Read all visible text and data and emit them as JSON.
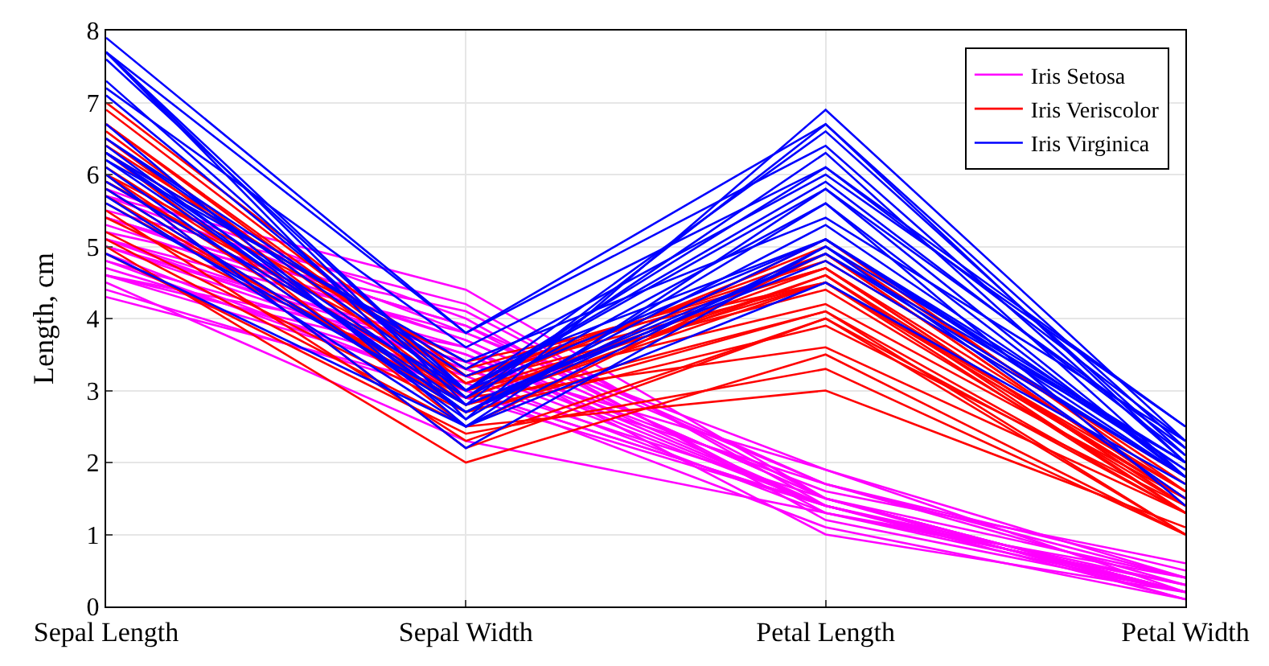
{
  "chart_data": {
    "type": "line",
    "ylabel": "Length, cm",
    "categories": [
      "Sepal Length",
      "Sepal Width",
      "Petal Length",
      "Petal Width"
    ],
    "ylim": [
      0,
      8
    ],
    "yticks": [
      0,
      1,
      2,
      3,
      4,
      5,
      6,
      7,
      8
    ],
    "grid": true,
    "legend": "top right",
    "line_style": "solid",
    "marker": "none",
    "series": [
      {
        "name": "Iris Setosa",
        "color": "#ff00ff",
        "values": [
          5.1,
          3.5,
          1.4,
          0.2
        ]
      },
      {
        "color": "#ff00ff",
        "values": [
          4.9,
          3.0,
          1.4,
          0.2
        ]
      },
      {
        "color": "#ff00ff",
        "values": [
          4.7,
          3.2,
          1.3,
          0.2
        ]
      },
      {
        "color": "#ff00ff",
        "values": [
          4.6,
          3.1,
          1.5,
          0.2
        ]
      },
      {
        "color": "#ff00ff",
        "values": [
          5.0,
          3.6,
          1.4,
          0.2
        ]
      },
      {
        "color": "#ff00ff",
        "values": [
          5.4,
          3.9,
          1.7,
          0.4
        ]
      },
      {
        "color": "#ff00ff",
        "values": [
          4.6,
          3.4,
          1.4,
          0.3
        ]
      },
      {
        "color": "#ff00ff",
        "values": [
          4.4,
          2.9,
          1.4,
          0.2
        ]
      },
      {
        "color": "#ff00ff",
        "values": [
          5.4,
          3.7,
          1.5,
          0.2
        ]
      },
      {
        "color": "#ff00ff",
        "values": [
          4.8,
          3.0,
          1.4,
          0.1
        ]
      },
      {
        "color": "#ff00ff",
        "values": [
          4.3,
          3.0,
          1.1,
          0.1
        ]
      },
      {
        "color": "#ff00ff",
        "values": [
          5.8,
          4.0,
          1.2,
          0.2
        ]
      },
      {
        "color": "#ff00ff",
        "values": [
          5.7,
          4.4,
          1.5,
          0.4
        ]
      },
      {
        "color": "#ff00ff",
        "values": [
          5.4,
          3.9,
          1.3,
          0.4
        ]
      },
      {
        "color": "#ff00ff",
        "values": [
          5.7,
          3.8,
          1.7,
          0.3
        ]
      },
      {
        "color": "#ff00ff",
        "values": [
          4.6,
          3.6,
          1.0,
          0.2
        ]
      },
      {
        "color": "#ff00ff",
        "values": [
          5.1,
          3.3,
          1.7,
          0.5
        ]
      },
      {
        "color": "#ff00ff",
        "values": [
          4.8,
          3.4,
          1.9,
          0.2
        ]
      },
      {
        "color": "#ff00ff",
        "values": [
          5.2,
          4.1,
          1.5,
          0.1
        ]
      },
      {
        "color": "#ff00ff",
        "values": [
          5.5,
          4.2,
          1.4,
          0.2
        ]
      },
      {
        "color": "#ff00ff",
        "values": [
          4.5,
          2.3,
          1.3,
          0.3
        ]
      },
      {
        "color": "#ff00ff",
        "values": [
          5.0,
          3.5,
          1.6,
          0.6
        ]
      },
      {
        "color": "#ff00ff",
        "values": [
          5.1,
          3.8,
          1.9,
          0.4
        ]
      },
      {
        "color": "#ff00ff",
        "values": [
          5.3,
          3.7,
          1.5,
          0.2
        ]
      },
      {
        "color": "#ff00ff",
        "values": [
          5.0,
          3.3,
          1.4,
          0.2
        ]
      },
      {
        "name": "Iris Veriscolor",
        "color": "#ff0000",
        "values": [
          7.0,
          3.2,
          4.7,
          1.4
        ]
      },
      {
        "color": "#ff0000",
        "values": [
          6.4,
          3.2,
          4.5,
          1.5
        ]
      },
      {
        "color": "#ff0000",
        "values": [
          6.9,
          3.1,
          4.9,
          1.5
        ]
      },
      {
        "color": "#ff0000",
        "values": [
          5.5,
          2.3,
          4.0,
          1.3
        ]
      },
      {
        "color": "#ff0000",
        "values": [
          6.5,
          2.8,
          4.6,
          1.5
        ]
      },
      {
        "color": "#ff0000",
        "values": [
          5.7,
          2.8,
          4.5,
          1.3
        ]
      },
      {
        "color": "#ff0000",
        "values": [
          6.3,
          3.3,
          4.7,
          1.6
        ]
      },
      {
        "color": "#ff0000",
        "values": [
          4.9,
          2.4,
          3.3,
          1.0
        ]
      },
      {
        "color": "#ff0000",
        "values": [
          6.6,
          2.9,
          4.6,
          1.3
        ]
      },
      {
        "color": "#ff0000",
        "values": [
          5.2,
          2.7,
          3.9,
          1.4
        ]
      },
      {
        "color": "#ff0000",
        "values": [
          5.0,
          2.0,
          3.5,
          1.0
        ]
      },
      {
        "color": "#ff0000",
        "values": [
          5.9,
          3.0,
          4.2,
          1.5
        ]
      },
      {
        "color": "#ff0000",
        "values": [
          6.0,
          2.2,
          4.0,
          1.0
        ]
      },
      {
        "color": "#ff0000",
        "values": [
          6.1,
          2.9,
          4.7,
          1.4
        ]
      },
      {
        "color": "#ff0000",
        "values": [
          5.6,
          2.9,
          3.6,
          1.3
        ]
      },
      {
        "color": "#ff0000",
        "values": [
          6.7,
          3.1,
          4.4,
          1.4
        ]
      },
      {
        "color": "#ff0000",
        "values": [
          5.9,
          3.2,
          4.8,
          1.8
        ]
      },
      {
        "color": "#ff0000",
        "values": [
          6.7,
          3.0,
          5.0,
          1.7
        ]
      },
      {
        "color": "#ff0000",
        "values": [
          6.0,
          2.7,
          5.1,
          1.6
        ]
      },
      {
        "color": "#ff0000",
        "values": [
          5.4,
          3.0,
          4.5,
          1.5
        ]
      },
      {
        "color": "#ff0000",
        "values": [
          6.0,
          3.4,
          4.5,
          1.6
        ]
      },
      {
        "color": "#ff0000",
        "values": [
          5.1,
          2.5,
          3.0,
          1.1
        ]
      },
      {
        "color": "#ff0000",
        "values": [
          5.7,
          2.8,
          4.1,
          1.3
        ]
      },
      {
        "color": "#ff0000",
        "values": [
          6.3,
          2.5,
          4.9,
          1.5
        ]
      },
      {
        "color": "#ff0000",
        "values": [
          5.8,
          2.7,
          4.1,
          1.0
        ]
      },
      {
        "name": "Iris Virginica",
        "color": "#0000ff",
        "values": [
          6.3,
          3.3,
          6.0,
          2.5
        ]
      },
      {
        "color": "#0000ff",
        "values": [
          5.8,
          2.7,
          5.1,
          1.9
        ]
      },
      {
        "color": "#0000ff",
        "values": [
          7.1,
          3.0,
          5.9,
          2.1
        ]
      },
      {
        "color": "#0000ff",
        "values": [
          6.3,
          2.9,
          5.6,
          1.8
        ]
      },
      {
        "color": "#0000ff",
        "values": [
          6.5,
          3.0,
          5.8,
          2.2
        ]
      },
      {
        "color": "#0000ff",
        "values": [
          7.6,
          3.0,
          6.6,
          2.1
        ]
      },
      {
        "color": "#0000ff",
        "values": [
          4.9,
          2.5,
          4.5,
          1.7
        ]
      },
      {
        "color": "#0000ff",
        "values": [
          7.3,
          2.9,
          6.3,
          1.8
        ]
      },
      {
        "color": "#0000ff",
        "values": [
          6.7,
          2.5,
          5.8,
          1.8
        ]
      },
      {
        "color": "#0000ff",
        "values": [
          7.2,
          3.6,
          6.1,
          2.5
        ]
      },
      {
        "color": "#0000ff",
        "values": [
          6.5,
          3.2,
          5.1,
          2.0
        ]
      },
      {
        "color": "#0000ff",
        "values": [
          6.4,
          2.7,
          5.3,
          1.9
        ]
      },
      {
        "color": "#0000ff",
        "values": [
          5.7,
          2.5,
          5.0,
          2.0
        ]
      },
      {
        "color": "#0000ff",
        "values": [
          7.7,
          3.8,
          6.7,
          2.2
        ]
      },
      {
        "color": "#0000ff",
        "values": [
          7.7,
          2.6,
          6.9,
          2.3
        ]
      },
      {
        "color": "#0000ff",
        "values": [
          6.0,
          2.2,
          5.0,
          1.5
        ]
      },
      {
        "color": "#0000ff",
        "values": [
          5.6,
          2.8,
          4.9,
          2.0
        ]
      },
      {
        "color": "#0000ff",
        "values": [
          7.7,
          2.8,
          6.7,
          2.0
        ]
      },
      {
        "color": "#0000ff",
        "values": [
          6.3,
          2.7,
          4.9,
          1.8
        ]
      },
      {
        "color": "#0000ff",
        "values": [
          7.9,
          3.8,
          6.4,
          2.0
        ]
      },
      {
        "color": "#0000ff",
        "values": [
          6.1,
          2.6,
          5.6,
          1.4
        ]
      },
      {
        "color": "#0000ff",
        "values": [
          7.7,
          3.0,
          6.1,
          2.3
        ]
      },
      {
        "color": "#0000ff",
        "values": [
          6.2,
          3.4,
          5.4,
          2.3
        ]
      },
      {
        "color": "#0000ff",
        "values": [
          5.9,
          3.0,
          5.1,
          1.8
        ]
      },
      {
        "color": "#0000ff",
        "values": [
          6.2,
          2.8,
          4.8,
          1.8
        ]
      }
    ]
  }
}
